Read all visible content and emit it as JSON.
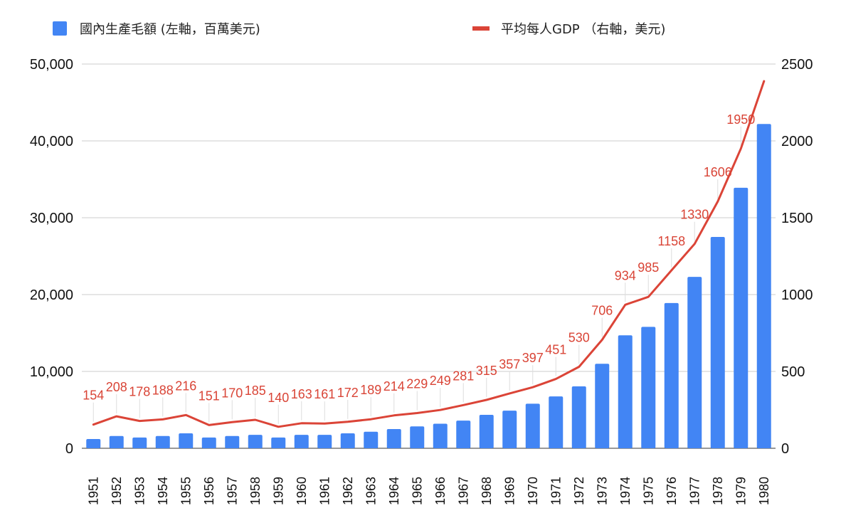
{
  "colors": {
    "bar": "#4285f4",
    "line": "#db4437",
    "grid": "#cccccc",
    "label": "#d94436"
  },
  "legend": {
    "gdp_label": "國內生產毛額 (左軸，百萬美元)",
    "per_capita_label": "平均每人GDP （右軸，美元)"
  },
  "chart_data": {
    "type": "bar",
    "categories": [
      "1951",
      "1952",
      "1953",
      "1954",
      "1955",
      "1956",
      "1957",
      "1958",
      "1959",
      "1960",
      "1961",
      "1962",
      "1963",
      "1964",
      "1965",
      "1966",
      "1967",
      "1968",
      "1969",
      "1970",
      "1971",
      "1972",
      "1973",
      "1974",
      "1975",
      "1976",
      "1977",
      "1978",
      "1979",
      "1980"
    ],
    "series": [
      {
        "name": "國內生產毛額 (左軸，百萬美元)",
        "type": "bar",
        "axis": "left",
        "values": [
          1200,
          1600,
          1400,
          1600,
          1950,
          1400,
          1600,
          1750,
          1400,
          1750,
          1750,
          1950,
          2150,
          2500,
          2850,
          3200,
          3600,
          4350,
          4900,
          5800,
          6750,
          8050,
          11000,
          14700,
          15800,
          18900,
          22300,
          27500,
          33900,
          42200
        ]
      },
      {
        "name": "平均每人GDP （右軸，美元)",
        "type": "line",
        "axis": "right",
        "values": [
          154,
          208,
          178,
          188,
          216,
          151,
          170,
          185,
          140,
          163,
          161,
          172,
          189,
          214,
          229,
          249,
          281,
          315,
          357,
          397,
          451,
          530,
          706,
          934,
          985,
          1158,
          1330,
          1606,
          1950,
          2389
        ],
        "data_labels": [
          "154",
          "208",
          "178",
          "188",
          "216",
          "151",
          "170",
          "185",
          "140",
          "163",
          "161",
          "172",
          "189",
          "214",
          "229",
          "249",
          "281",
          "315",
          "357",
          "397",
          "451",
          "530",
          "706",
          "934",
          "985",
          "1158",
          "1330",
          "1606",
          "1950",
          ""
        ]
      }
    ],
    "y_left": {
      "ylim": [
        0,
        50000
      ],
      "ticks": [
        "0",
        "10,000",
        "20,000",
        "30,000",
        "40,000",
        "50,000"
      ]
    },
    "y_right": {
      "ylim": [
        0,
        2500
      ],
      "ticks": [
        "0",
        "500",
        "1000",
        "1500",
        "2000",
        "2500"
      ]
    },
    "grid": true,
    "legend_position": "top"
  }
}
